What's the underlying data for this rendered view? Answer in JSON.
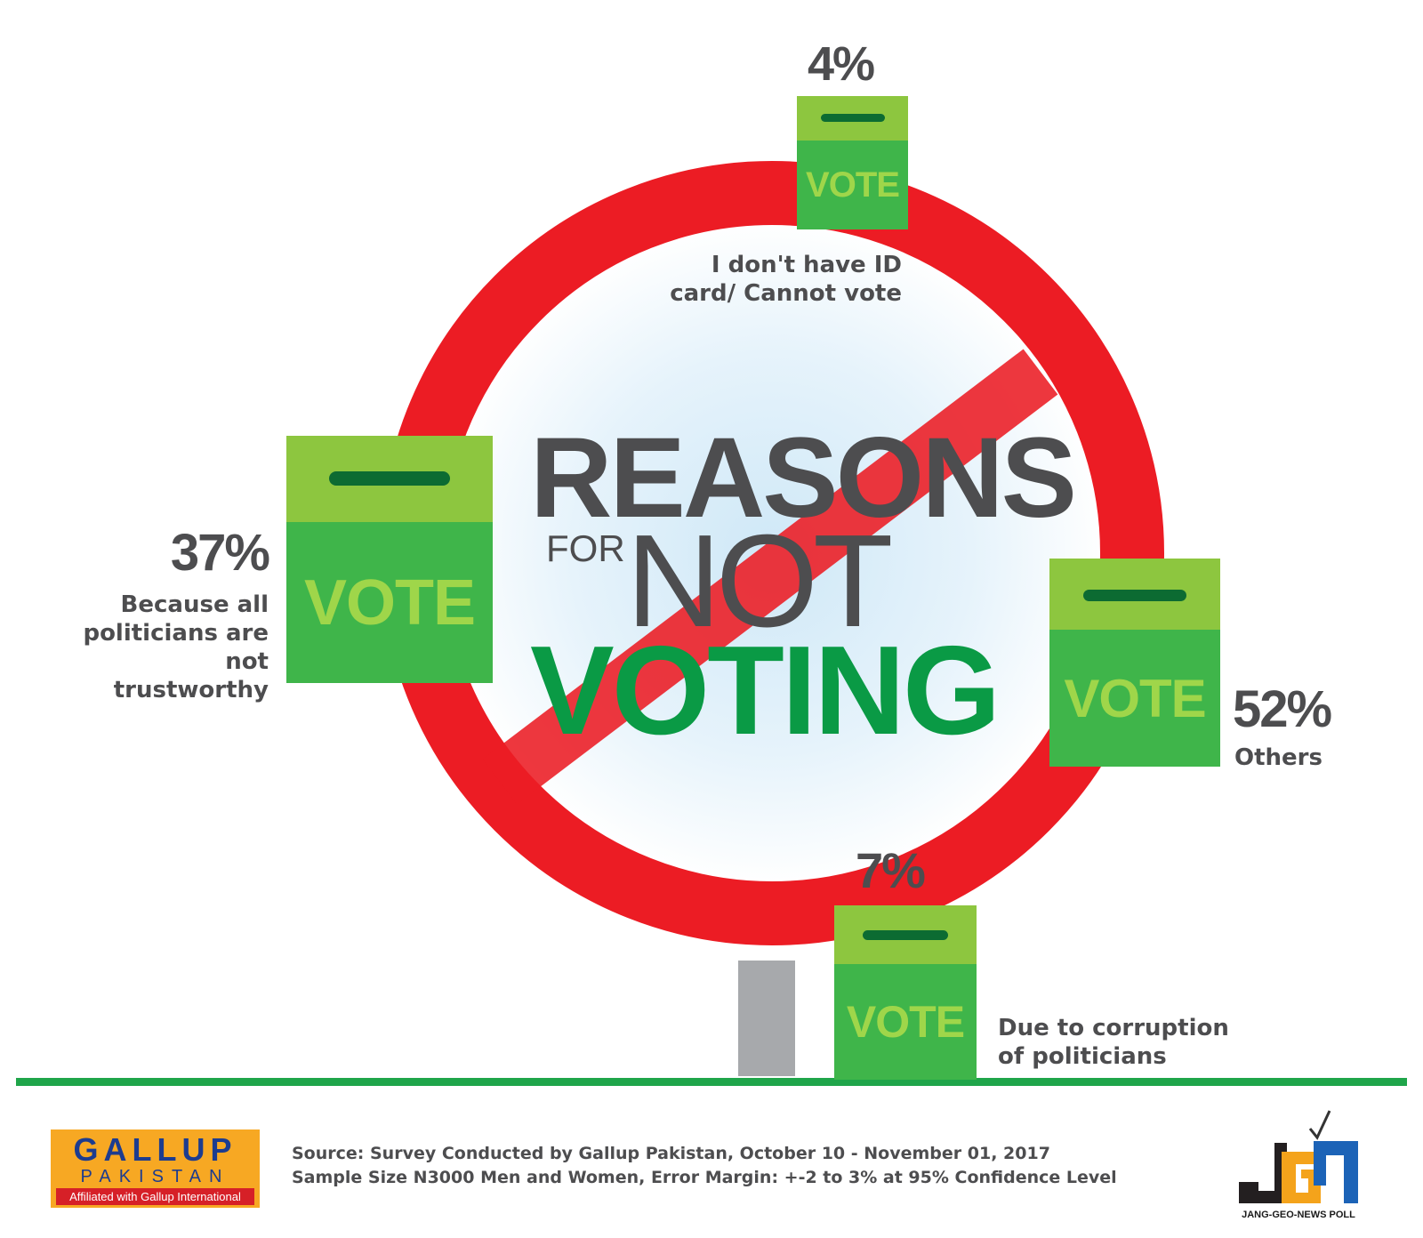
{
  "chart_data": {
    "type": "pie",
    "title_lines": [
      "REASONS",
      "FOR",
      "NOT",
      "VOTING"
    ],
    "categories": [
      "Because all politicians are not trustworthy",
      "I don't have ID card/ Cannot vote",
      "Others",
      "Due to corruption of politicians"
    ],
    "values": [
      37,
      4,
      52,
      7
    ],
    "value_labels": [
      "37%",
      "4%",
      "52%",
      "7%"
    ],
    "reason_lines": [
      [
        "Because all",
        "politicians are not",
        "trustworthy"
      ],
      [
        "I don't have ID",
        "card/ Cannot vote"
      ],
      [
        "Others"
      ],
      [
        "Due to corruption",
        "of politicians"
      ]
    ],
    "box_word": "VOTE"
  },
  "footer": {
    "source_line": "Source: Survey Conducted by Gallup Pakistan, October 10 - November 01, 2017",
    "sample_line": "Sample Size N3000 Men and Women, Error Margin: +-2 to 3% at 95% Confidence Level"
  },
  "logos": {
    "gallup_line1": "GALLUP",
    "gallup_line2": "PAKISTAN",
    "gallup_line3": "Affiliated with Gallup International",
    "jgn_caption": "JANG-GEO-NEWS POLL"
  },
  "colors": {
    "sign_red": "#ec1c24",
    "box_green": "#3fb54a",
    "lid_green": "#8dc63f",
    "slot_green": "#0c6b32",
    "title_gray": "#4d4d4f",
    "voting_green": "#0a9a45",
    "ground_green": "#1fa54a",
    "post_gray": "#a7a9ac"
  }
}
